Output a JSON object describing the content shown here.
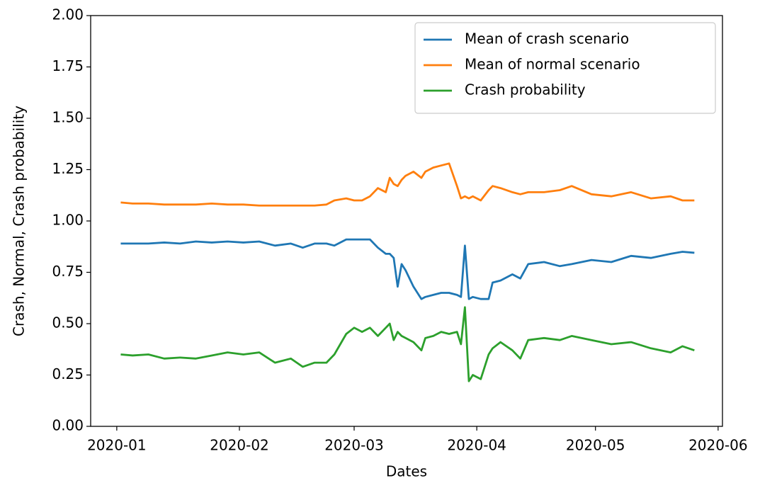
{
  "chart_data": {
    "type": "line",
    "x_label": "Dates",
    "y_label": "Crash, Normal, Crash probability",
    "x": [
      1,
      4,
      8,
      12,
      16,
      20,
      24,
      28,
      32,
      36,
      40,
      44,
      47,
      50,
      53,
      55,
      58,
      60,
      62,
      64,
      66,
      68,
      69,
      70,
      71,
      72,
      73,
      75,
      77,
      78,
      80,
      82,
      84,
      86,
      87,
      88,
      89,
      90,
      92,
      94,
      95,
      97,
      100,
      102,
      104,
      108,
      112,
      115,
      120,
      125,
      130,
      135,
      140,
      143,
      146
    ],
    "series": [
      {
        "name": "Mean of crash scenario",
        "color": "#1f77b4",
        "values": [
          0.89,
          0.89,
          0.89,
          0.895,
          0.89,
          0.9,
          0.895,
          0.9,
          0.895,
          0.9,
          0.88,
          0.89,
          0.87,
          0.89,
          0.89,
          0.88,
          0.91,
          0.91,
          0.91,
          0.91,
          0.87,
          0.84,
          0.84,
          0.82,
          0.68,
          0.79,
          0.76,
          0.68,
          0.62,
          0.63,
          0.64,
          0.65,
          0.65,
          0.64,
          0.63,
          0.88,
          0.62,
          0.63,
          0.62,
          0.62,
          0.7,
          0.71,
          0.74,
          0.72,
          0.79,
          0.8,
          0.78,
          0.79,
          0.81,
          0.8,
          0.83,
          0.82,
          0.84,
          0.85,
          0.845
        ]
      },
      {
        "name": "Mean of normal scenario",
        "color": "#ff7f0e",
        "values": [
          1.09,
          1.085,
          1.085,
          1.08,
          1.08,
          1.08,
          1.085,
          1.08,
          1.08,
          1.075,
          1.075,
          1.075,
          1.075,
          1.075,
          1.08,
          1.1,
          1.11,
          1.1,
          1.1,
          1.12,
          1.16,
          1.14,
          1.21,
          1.18,
          1.17,
          1.2,
          1.22,
          1.24,
          1.21,
          1.24,
          1.26,
          1.27,
          1.28,
          1.17,
          1.11,
          1.12,
          1.11,
          1.12,
          1.1,
          1.15,
          1.17,
          1.16,
          1.14,
          1.13,
          1.14,
          1.14,
          1.15,
          1.17,
          1.13,
          1.12,
          1.14,
          1.11,
          1.12,
          1.1,
          1.1
        ]
      },
      {
        "name": "Crash probability",
        "color": "#2ca02c",
        "values": [
          0.35,
          0.345,
          0.35,
          0.33,
          0.335,
          0.33,
          0.345,
          0.36,
          0.35,
          0.36,
          0.31,
          0.33,
          0.29,
          0.31,
          0.31,
          0.35,
          0.45,
          0.48,
          0.46,
          0.48,
          0.44,
          0.48,
          0.5,
          0.42,
          0.46,
          0.44,
          0.43,
          0.41,
          0.37,
          0.43,
          0.44,
          0.46,
          0.45,
          0.46,
          0.4,
          0.58,
          0.22,
          0.25,
          0.23,
          0.35,
          0.38,
          0.41,
          0.37,
          0.33,
          0.42,
          0.43,
          0.42,
          0.44,
          0.42,
          0.4,
          0.41,
          0.38,
          0.36,
          0.39,
          0.37
        ]
      }
    ],
    "xlim": [
      -6.6,
      153.1
    ],
    "xticks": [
      {
        "value": 0,
        "label": "2020-01"
      },
      {
        "value": 31,
        "label": "2020-02"
      },
      {
        "value": 60,
        "label": "2020-03"
      },
      {
        "value": 91,
        "label": "2020-04"
      },
      {
        "value": 121,
        "label": "2020-05"
      },
      {
        "value": 152,
        "label": "2020-06"
      }
    ],
    "ylim": [
      0,
      2
    ],
    "yticks": [
      {
        "value": 0,
        "label": "0.00"
      },
      {
        "value": 0.25,
        "label": "0.25"
      },
      {
        "value": 0.5,
        "label": "0.50"
      },
      {
        "value": 0.75,
        "label": "0.75"
      },
      {
        "value": 1,
        "label": "1.00"
      },
      {
        "value": 1.25,
        "label": "1.25"
      },
      {
        "value": 1.5,
        "label": "1.50"
      },
      {
        "value": 1.75,
        "label": "1.75"
      },
      {
        "value": 2,
        "label": "2.00"
      }
    ],
    "legend": "upper right",
    "grid": false
  }
}
